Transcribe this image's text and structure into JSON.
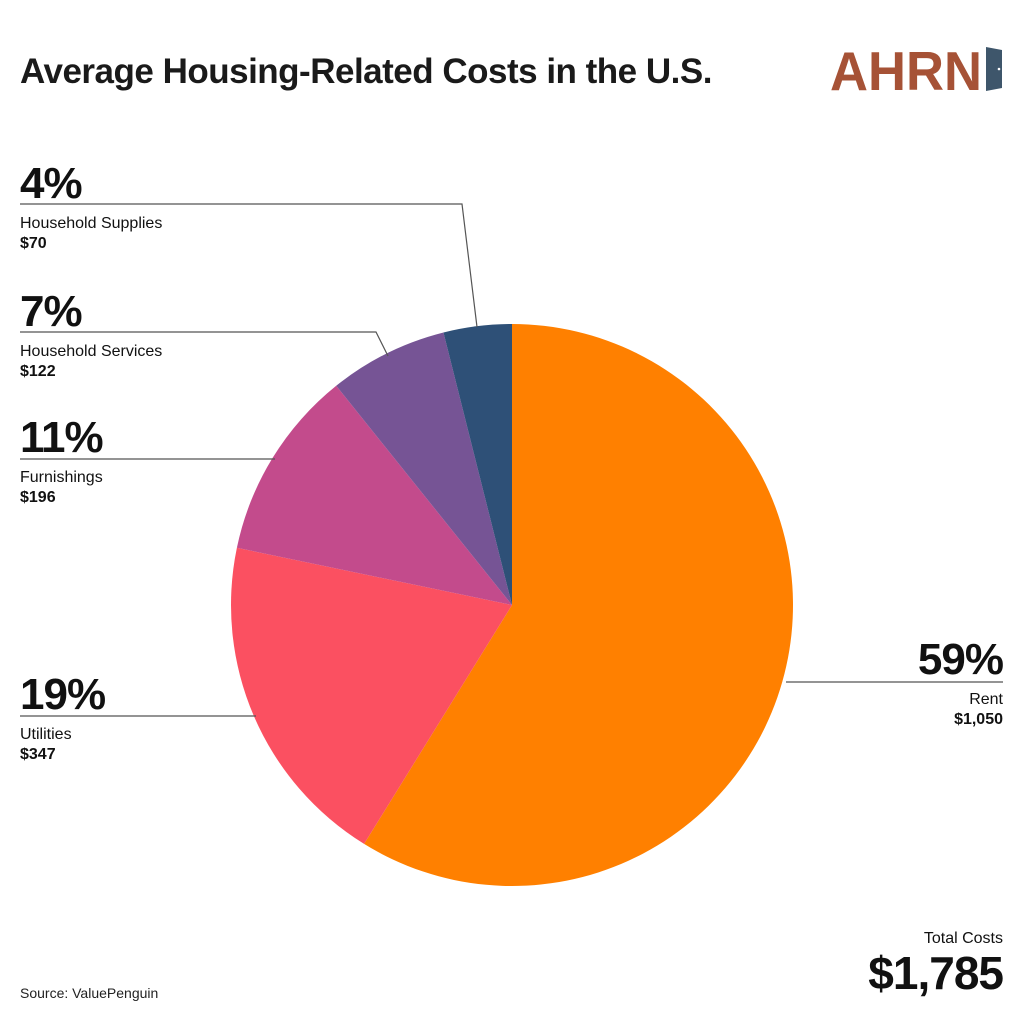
{
  "title": "Average Housing-Related Costs in the U.S.",
  "logo": {
    "text": "AHRN",
    "color": "#A65236",
    "door_color": "#3E566B"
  },
  "chart_data": {
    "type": "pie",
    "title": "Average Housing-Related Costs in the U.S.",
    "start_angle": "12 o'clock, clockwise",
    "slices": [
      {
        "label": "Rent",
        "value": 1050,
        "percent": "59%",
        "amount": "$1,050",
        "color": "#FF8000"
      },
      {
        "label": "Utilities",
        "value": 347,
        "percent": "19%",
        "amount": "$347",
        "color": "#FB5061"
      },
      {
        "label": "Furnishings",
        "value": 196,
        "percent": "11%",
        "amount": "$196",
        "color": "#C34B8C"
      },
      {
        "label": "Household Services",
        "value": 122,
        "percent": "7%",
        "amount": "$122",
        "color": "#765495"
      },
      {
        "label": "Household Supplies",
        "value": 70,
        "percent": "4%",
        "amount": "$70",
        "color": "#2E5077"
      }
    ],
    "total_label": "Total Costs",
    "total_value": "$1,785"
  },
  "source": "Source: ValuePenguin"
}
